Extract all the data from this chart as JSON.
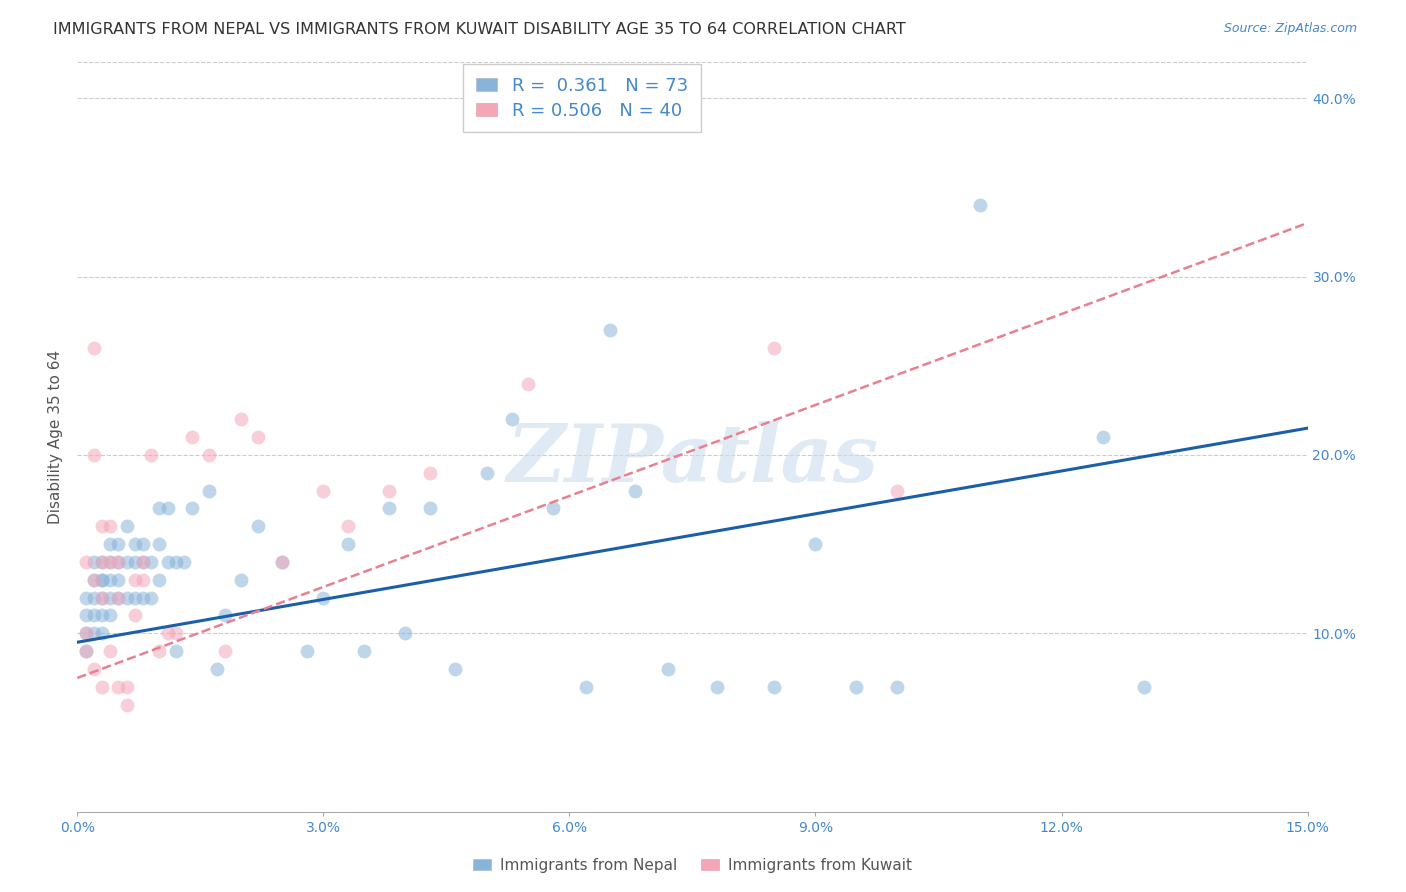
{
  "title": "IMMIGRANTS FROM NEPAL VS IMMIGRANTS FROM KUWAIT DISABILITY AGE 35 TO 64 CORRELATION CHART",
  "source": "Source: ZipAtlas.com",
  "ylabel": "Disability Age 35 to 64",
  "xlim": [
    0.0,
    0.15
  ],
  "ylim": [
    0.0,
    0.42
  ],
  "yticks": [
    0.1,
    0.2,
    0.3,
    0.4
  ],
  "ytick_labels": [
    "10.0%",
    "20.0%",
    "30.0%",
    "40.0%"
  ],
  "xticks": [
    0.0,
    0.03,
    0.06,
    0.09,
    0.12,
    0.15
  ],
  "xtick_labels": [
    "0.0%",
    "3.0%",
    "6.0%",
    "9.0%",
    "12.0%",
    "15.0%"
  ],
  "nepal_color": "#89b4d9",
  "kuwait_color": "#f4a6b8",
  "nepal_R": "0.361",
  "nepal_N": "73",
  "kuwait_R": "0.506",
  "kuwait_N": "40",
  "legend_label_nepal": "Immigrants from Nepal",
  "legend_label_kuwait": "Immigrants from Kuwait",
  "nepal_x": [
    0.001,
    0.001,
    0.001,
    0.001,
    0.002,
    0.002,
    0.002,
    0.002,
    0.002,
    0.003,
    0.003,
    0.003,
    0.003,
    0.003,
    0.003,
    0.004,
    0.004,
    0.004,
    0.004,
    0.004,
    0.005,
    0.005,
    0.005,
    0.005,
    0.006,
    0.006,
    0.006,
    0.007,
    0.007,
    0.007,
    0.008,
    0.008,
    0.008,
    0.009,
    0.009,
    0.01,
    0.01,
    0.01,
    0.011,
    0.011,
    0.012,
    0.012,
    0.013,
    0.014,
    0.016,
    0.017,
    0.018,
    0.02,
    0.022,
    0.025,
    0.028,
    0.03,
    0.033,
    0.035,
    0.038,
    0.04,
    0.043,
    0.046,
    0.05,
    0.053,
    0.058,
    0.062,
    0.065,
    0.068,
    0.072,
    0.078,
    0.085,
    0.09,
    0.095,
    0.1,
    0.11,
    0.125,
    0.13
  ],
  "nepal_y": [
    0.12,
    0.11,
    0.1,
    0.09,
    0.14,
    0.13,
    0.12,
    0.11,
    0.1,
    0.14,
    0.13,
    0.13,
    0.12,
    0.11,
    0.1,
    0.15,
    0.14,
    0.13,
    0.12,
    0.11,
    0.15,
    0.14,
    0.13,
    0.12,
    0.16,
    0.14,
    0.12,
    0.15,
    0.14,
    0.12,
    0.15,
    0.14,
    0.12,
    0.14,
    0.12,
    0.17,
    0.15,
    0.13,
    0.17,
    0.14,
    0.14,
    0.09,
    0.14,
    0.17,
    0.18,
    0.08,
    0.11,
    0.13,
    0.16,
    0.14,
    0.09,
    0.12,
    0.15,
    0.09,
    0.17,
    0.1,
    0.17,
    0.08,
    0.19,
    0.22,
    0.17,
    0.07,
    0.27,
    0.18,
    0.08,
    0.07,
    0.07,
    0.15,
    0.07,
    0.07,
    0.34,
    0.21,
    0.07
  ],
  "kuwait_x": [
    0.001,
    0.001,
    0.001,
    0.002,
    0.002,
    0.002,
    0.002,
    0.003,
    0.003,
    0.003,
    0.003,
    0.004,
    0.004,
    0.004,
    0.005,
    0.005,
    0.005,
    0.006,
    0.006,
    0.007,
    0.007,
    0.008,
    0.008,
    0.009,
    0.01,
    0.011,
    0.012,
    0.014,
    0.016,
    0.018,
    0.02,
    0.022,
    0.025,
    0.03,
    0.033,
    0.038,
    0.043,
    0.055,
    0.085,
    0.1
  ],
  "kuwait_y": [
    0.14,
    0.1,
    0.09,
    0.26,
    0.2,
    0.13,
    0.08,
    0.16,
    0.14,
    0.12,
    0.07,
    0.16,
    0.14,
    0.09,
    0.14,
    0.12,
    0.07,
    0.07,
    0.06,
    0.13,
    0.11,
    0.14,
    0.13,
    0.2,
    0.09,
    0.1,
    0.1,
    0.21,
    0.2,
    0.09,
    0.22,
    0.21,
    0.14,
    0.18,
    0.16,
    0.18,
    0.19,
    0.24,
    0.26,
    0.18
  ],
  "nepal_line_color": "#1a5fa8",
  "nepal_line_style": "solid",
  "kuwait_line_color": "#e88090",
  "kuwait_line_style": "dashed",
  "watermark": "ZIPatlas",
  "background_color": "#ffffff",
  "grid_color": "#cccccc",
  "axis_color": "#4488cc",
  "title_color": "#333333",
  "title_fontsize": 11.5,
  "label_fontsize": 11,
  "tick_fontsize": 10,
  "marker_size": 100,
  "nepal_line_intercept": 0.095,
  "nepal_line_slope": 0.8,
  "kuwait_line_intercept": 0.075,
  "kuwait_line_slope": 1.7
}
